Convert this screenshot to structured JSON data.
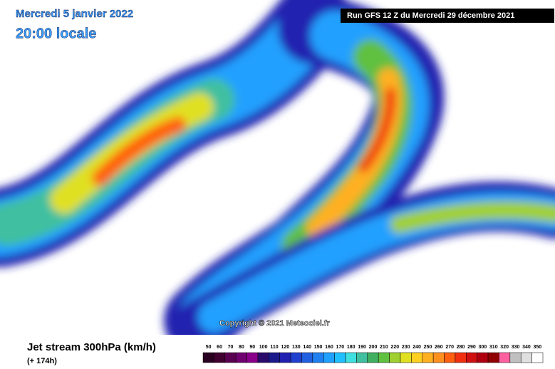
{
  "header": {
    "date": "Mercredi 5 janvier 2022",
    "time": "20:00 locale",
    "run": "Run GFS 12 Z du Mercredi 29 décembre 2021"
  },
  "copyright": "Copyright © 2021 Meteociel.fr",
  "footer": {
    "title": "Jet stream 300hPa (km/h)",
    "lead": "(+ 174h)"
  },
  "legend": {
    "labels": [
      50,
      60,
      70,
      80,
      90,
      100,
      110,
      120,
      130,
      140,
      150,
      160,
      170,
      180,
      190,
      200,
      210,
      220,
      230,
      240,
      250,
      260,
      270,
      280,
      290,
      300,
      310,
      320,
      330,
      340,
      350
    ],
    "colors": [
      "#2a0020",
      "#400030",
      "#5a0050",
      "#700070",
      "#8a008a",
      "#2a0a6a",
      "#1a1a8a",
      "#2020b0",
      "#2040d0",
      "#2060e0",
      "#2080f0",
      "#20a0ff",
      "#20c0ff",
      "#40e0e0",
      "#40c0a0",
      "#40b060",
      "#60c040",
      "#a0d030",
      "#e0e020",
      "#ffd020",
      "#ffb020",
      "#ff9020",
      "#ff6010",
      "#f03010",
      "#d01010",
      "#b00010",
      "#900000",
      "#ff60a0",
      "#c0c0c0",
      "#e0e0e0",
      "#ffffff"
    ]
  }
}
